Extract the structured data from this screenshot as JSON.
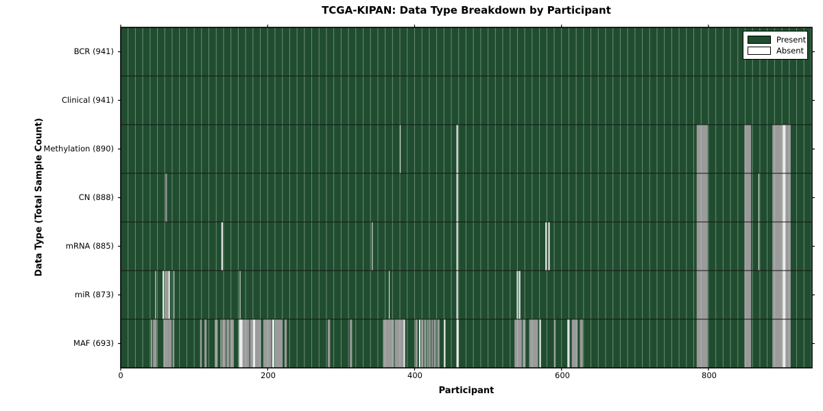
{
  "title": "TCGA-KIPAN: Data Type Breakdown by Participant",
  "x_axis": {
    "label": "Participant",
    "ticks": [
      "0",
      "200",
      "400",
      "600",
      "800"
    ],
    "tick_values": [
      0,
      200,
      400,
      600,
      800
    ],
    "min": 0,
    "max": 941
  },
  "y_axis": {
    "label": "Data Type (Total Sample Count)"
  },
  "legend": {
    "items": [
      {
        "label": "Present",
        "color": "#204d2f"
      },
      {
        "label": "Absent",
        "color": "#ffffff"
      }
    ]
  },
  "colors": {
    "present": "#204d2f",
    "absent_gray": "#9b9b9b",
    "absent_white": "#ececec",
    "gridline": "rgba(185,205,190,0.5)",
    "row_separator": "#141414",
    "axis": "#000000"
  },
  "chart_data": {
    "type": "heatmap",
    "title": "TCGA-KIPAN: Data Type Breakdown by Participant",
    "xlabel": "Participant",
    "ylabel": "Data Type (Total Sample Count)",
    "x_range": [
      0,
      941
    ],
    "n_participants": 941,
    "gridline_every": 10,
    "legend_position": "upper right",
    "value_legend": {
      "present": "green",
      "absent": "white/gray stripes"
    },
    "rows": [
      {
        "label": "BCR (941)",
        "name": "BCR",
        "total": 941,
        "absent_ranges": []
      },
      {
        "label": "Clinical (941)",
        "name": "Clinical",
        "total": 941,
        "absent_ranges": []
      },
      {
        "label": "Methylation (890)",
        "name": "Methylation",
        "total": 890,
        "absent_ranges": [
          [
            380,
            380,
            "w"
          ],
          [
            457,
            458,
            "w"
          ],
          [
            784,
            798,
            "g"
          ],
          [
            849,
            857,
            "g"
          ],
          [
            887,
            900,
            "g"
          ],
          [
            901,
            904,
            "w"
          ],
          [
            905,
            911,
            "g"
          ]
        ]
      },
      {
        "label": "CN (888)",
        "name": "CN",
        "total": 888,
        "absent_ranges": [
          [
            61,
            62,
            "g"
          ],
          [
            457,
            458,
            "w"
          ],
          [
            784,
            798,
            "g"
          ],
          [
            849,
            857,
            "g"
          ],
          [
            868,
            868,
            "w"
          ],
          [
            887,
            900,
            "g"
          ],
          [
            901,
            904,
            "w"
          ],
          [
            905,
            911,
            "g"
          ]
        ]
      },
      {
        "label": "mRNA (885)",
        "name": "mRNA",
        "total": 885,
        "absent_ranges": [
          [
            137,
            138,
            "w"
          ],
          [
            342,
            342,
            "w"
          ],
          [
            457,
            458,
            "w"
          ],
          [
            578,
            579,
            "w"
          ],
          [
            582,
            583,
            "w"
          ],
          [
            868,
            868,
            "w"
          ],
          [
            784,
            798,
            "g"
          ],
          [
            849,
            857,
            "g"
          ],
          [
            887,
            900,
            "g"
          ],
          [
            901,
            904,
            "w"
          ],
          [
            905,
            911,
            "g"
          ]
        ]
      },
      {
        "label": "miR (873)",
        "name": "miR",
        "total": 873,
        "absent_ranges": [
          [
            47,
            47,
            "w"
          ],
          [
            57,
            58,
            "w"
          ],
          [
            60,
            64,
            "g"
          ],
          [
            65,
            66,
            "w"
          ],
          [
            72,
            72,
            "w"
          ],
          [
            162,
            162,
            "w"
          ],
          [
            365,
            365,
            "w"
          ],
          [
            457,
            458,
            "w"
          ],
          [
            539,
            540,
            "w"
          ],
          [
            542,
            543,
            "w"
          ],
          [
            784,
            798,
            "g"
          ],
          [
            849,
            857,
            "g"
          ],
          [
            887,
            900,
            "g"
          ],
          [
            901,
            904,
            "w"
          ],
          [
            905,
            911,
            "g"
          ]
        ]
      },
      {
        "label": "MAF (693)",
        "name": "MAF",
        "total": 693,
        "absent_ranges": [
          [
            41,
            42,
            "g"
          ],
          [
            44,
            48,
            "g"
          ],
          [
            58,
            60,
            "g"
          ],
          [
            61,
            64,
            "g"
          ],
          [
            65,
            68,
            "g"
          ],
          [
            71,
            72,
            "g"
          ],
          [
            108,
            109,
            "g"
          ],
          [
            114,
            116,
            "g"
          ],
          [
            128,
            131,
            "g"
          ],
          [
            136,
            136,
            "w"
          ],
          [
            138,
            142,
            "g"
          ],
          [
            144,
            147,
            "g"
          ],
          [
            149,
            153,
            "g"
          ],
          [
            161,
            165,
            "w"
          ],
          [
            166,
            174,
            "g"
          ],
          [
            176,
            179,
            "g"
          ],
          [
            180,
            182,
            "w"
          ],
          [
            183,
            190,
            "g"
          ],
          [
            194,
            204,
            "g"
          ],
          [
            206,
            208,
            "w"
          ],
          [
            210,
            219,
            "g"
          ],
          [
            223,
            225,
            "g"
          ],
          [
            282,
            284,
            "g"
          ],
          [
            312,
            314,
            "g"
          ],
          [
            357,
            371,
            "g"
          ],
          [
            373,
            384,
            "g"
          ],
          [
            385,
            386,
            "w"
          ],
          [
            401,
            403,
            "g"
          ],
          [
            406,
            407,
            "w"
          ],
          [
            409,
            411,
            "g"
          ],
          [
            413,
            415,
            "g"
          ],
          [
            417,
            418,
            "g"
          ],
          [
            420,
            421,
            "g"
          ],
          [
            423,
            424,
            "g"
          ],
          [
            426,
            428,
            "g"
          ],
          [
            431,
            433,
            "g"
          ],
          [
            440,
            441,
            "w"
          ],
          [
            457,
            459,
            "w"
          ],
          [
            536,
            545,
            "g"
          ],
          [
            547,
            550,
            "g"
          ],
          [
            556,
            567,
            "g"
          ],
          [
            570,
            571,
            "w"
          ],
          [
            590,
            591,
            "g"
          ],
          [
            608,
            610,
            "w"
          ],
          [
            614,
            618,
            "g"
          ],
          [
            619,
            621,
            "g"
          ],
          [
            625,
            628,
            "g"
          ],
          [
            784,
            798,
            "g"
          ],
          [
            849,
            857,
            "g"
          ],
          [
            887,
            900,
            "g"
          ],
          [
            901,
            904,
            "w"
          ],
          [
            905,
            911,
            "g"
          ]
        ]
      }
    ]
  }
}
